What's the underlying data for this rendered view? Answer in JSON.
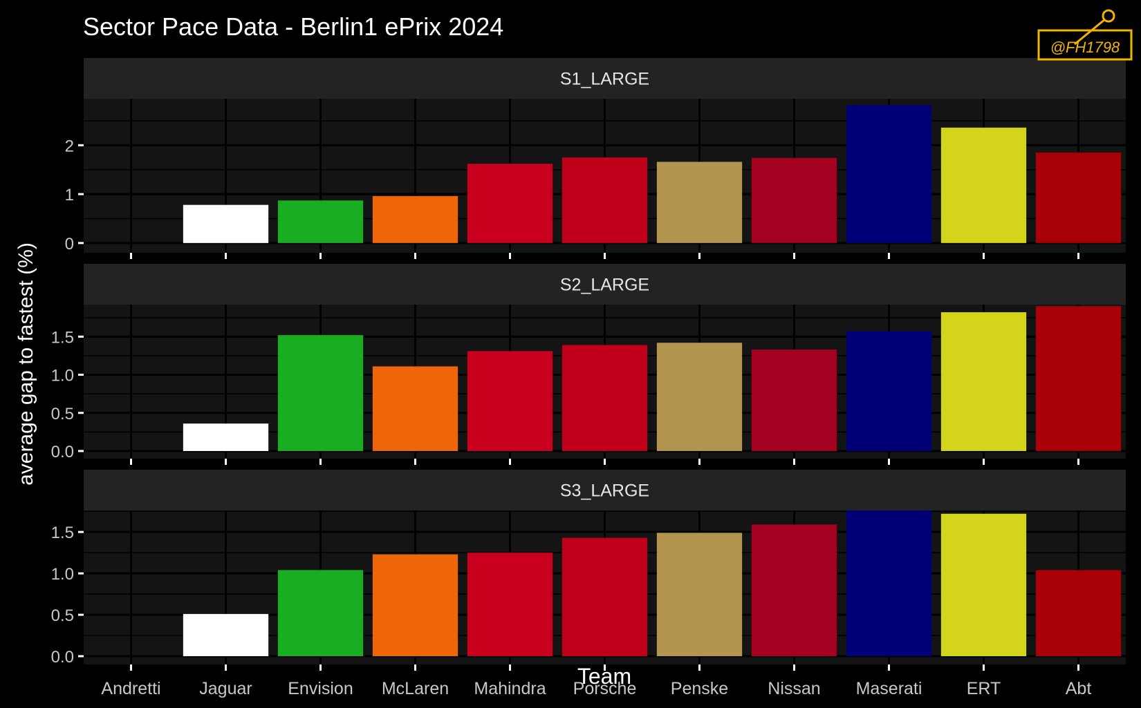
{
  "chart_data": {
    "type": "bar",
    "title": "Sector Pace Data - Berlin1 ePrix 2024",
    "xlabel": "Team",
    "ylabel": "average gap to fastest (%)",
    "watermark": "@FH1798",
    "categories": [
      "Andretti",
      "Jaguar",
      "Envision",
      "McLaren",
      "Mahindra",
      "Porsche",
      "Penske",
      "Nissan",
      "Maserati",
      "ERT",
      "Abt"
    ],
    "colors": [
      "#000000",
      "#ffffff",
      "#19ad21",
      "#ef650a",
      "#c8001e",
      "#c0001a",
      "#b39550",
      "#a40020",
      "#020077",
      "#d4d41b",
      "#a90008"
    ],
    "grid": true,
    "panels": [
      {
        "label": "S1_LARGE",
        "ylim": [
          -0.2,
          2.95
        ],
        "ticks": [
          0,
          1,
          2
        ],
        "tick_labels": [
          "0",
          "1",
          "2"
        ],
        "values": [
          0.0,
          0.78,
          0.87,
          0.96,
          1.62,
          1.75,
          1.66,
          1.74,
          2.82,
          2.36,
          1.85
        ]
      },
      {
        "label": "S2_LARGE",
        "ylim": [
          -0.1,
          1.92
        ],
        "ticks": [
          0.0,
          0.5,
          1.0,
          1.5
        ],
        "tick_labels": [
          "0.0",
          "0.5",
          "1.0",
          "1.5"
        ],
        "values": [
          0.0,
          0.36,
          1.52,
          1.11,
          1.31,
          1.39,
          1.42,
          1.33,
          1.57,
          1.82,
          1.9
        ]
      },
      {
        "label": "S3_LARGE",
        "ylim": [
          -0.1,
          1.76
        ],
        "ticks": [
          0.0,
          0.5,
          1.0,
          1.5
        ],
        "tick_labels": [
          "0.0",
          "0.5",
          "1.0",
          "1.5"
        ],
        "values": [
          0.0,
          0.51,
          1.04,
          1.23,
          1.25,
          1.43,
          1.49,
          1.59,
          1.76,
          1.72,
          1.04
        ]
      }
    ]
  }
}
